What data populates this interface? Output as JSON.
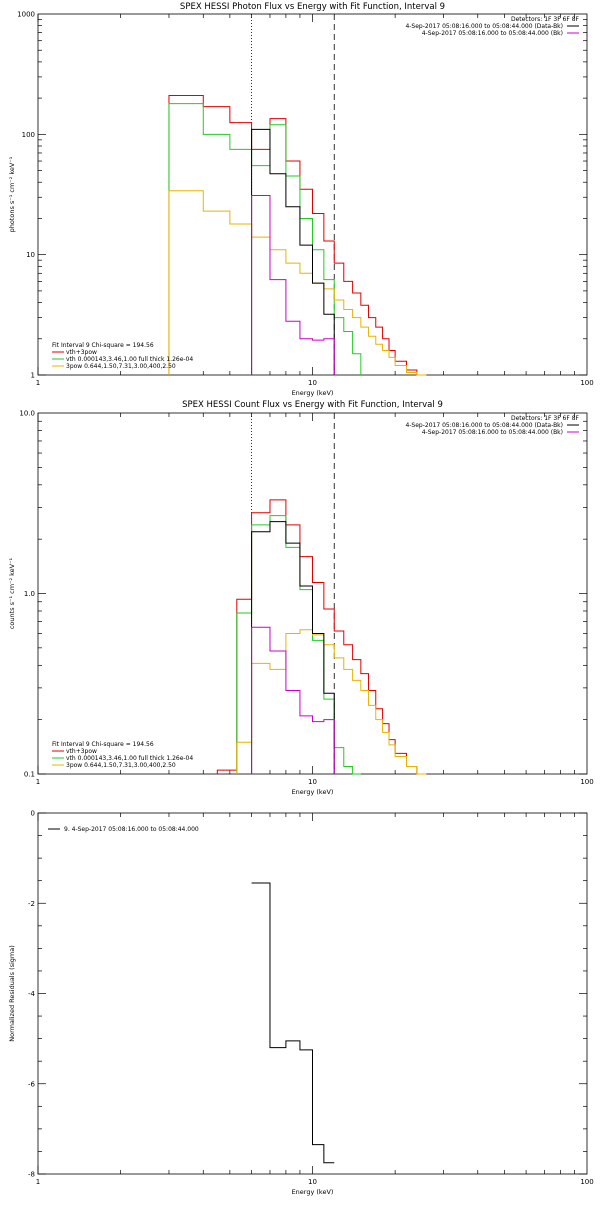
{
  "colors": {
    "red": "#e00000",
    "green": "#22cc22",
    "yellow": "#e8b400",
    "magenta": "#cc00cc",
    "black": "#000000"
  },
  "chart_data": [
    {
      "id": "photon",
      "type": "line",
      "title": "SPEX HESSI Photon Flux vs Energy with Fit Function, Interval 9",
      "xlabel": "Energy (keV)",
      "ylabel": "photons s⁻¹ cm⁻² keV⁻¹",
      "xscale": "log",
      "yscale": "log",
      "xlim": [
        1,
        100
      ],
      "ylim": [
        1,
        1000
      ],
      "xticks": [
        {
          "v": 1,
          "label": "1"
        },
        {
          "v": 10,
          "label": "10"
        },
        {
          "v": 100,
          "label": "100"
        }
      ],
      "yticks": [
        {
          "v": 1,
          "label": "1"
        },
        {
          "v": 10,
          "label": "10"
        },
        {
          "v": 100,
          "label": "100"
        },
        {
          "v": 1000,
          "label": "1000"
        }
      ],
      "vlines": [
        {
          "x": 6,
          "style": "dotted"
        },
        {
          "x": 12,
          "style": "dashed"
        }
      ],
      "header": [
        {
          "text": "Detectors: 1F 3F 6F 8F",
          "color": ""
        },
        {
          "text": "4-Sep-2017 05:08:16.000 to 05:08:44.000 (Data-Bk)",
          "color": "black"
        },
        {
          "text": "4-Sep-2017 05:08:16.000 to 05:08:44.000 (Bk)",
          "color": "magenta"
        }
      ],
      "legend_title": "Fit Interval 9   Chi-square = 194.56",
      "legend": [
        {
          "text": "vth+3pow",
          "color": "red"
        },
        {
          "text": "vth 0.000143,3.46,1.00  full thick 1.26e-04",
          "color": "green"
        },
        {
          "text": "3pow 0.644,1.50,7.31,3.00,400,2.50",
          "color": "yellow"
        }
      ],
      "series": [
        {
          "color": "red",
          "edges": [
            3,
            4,
            5,
            6,
            7,
            8,
            9,
            10,
            11,
            12,
            13,
            14,
            15,
            16,
            17,
            18,
            19,
            20,
            22,
            24,
            26
          ],
          "values": [
            210,
            170,
            125,
            75,
            135,
            60,
            35,
            22,
            13,
            8.5,
            6.0,
            4.8,
            3.8,
            3.0,
            2.5,
            2.0,
            1.6,
            1.3,
            1.1,
            0.95
          ]
        },
        {
          "color": "green",
          "edges": [
            3,
            4,
            5,
            6,
            7,
            8,
            9,
            10,
            11,
            12,
            13,
            14,
            15
          ],
          "values": [
            180,
            100,
            75,
            55,
            120,
            45,
            20,
            11,
            6.2,
            3.0,
            2.3,
            1.5
          ]
        },
        {
          "color": "yellow",
          "edges": [
            3,
            4,
            5,
            6,
            7,
            8,
            9,
            10,
            11,
            12,
            13,
            14,
            15,
            16,
            17,
            18,
            19,
            20,
            22,
            24,
            26
          ],
          "values": [
            34,
            23,
            18,
            14,
            11,
            8.5,
            7.0,
            5.8,
            5.2,
            4.2,
            3.5,
            3.0,
            2.5,
            2.1,
            1.8,
            1.6,
            1.4,
            1.2,
            1.05,
            0.9
          ]
        },
        {
          "color": "black",
          "edges": [
            6,
            7,
            8,
            9,
            10,
            11,
            12
          ],
          "values": [
            110,
            47,
            25,
            12,
            5.8,
            3.2
          ]
        },
        {
          "color": "magenta",
          "edges": [
            6,
            7,
            8,
            9,
            10,
            11,
            12
          ],
          "values": [
            31,
            6.2,
            2.8,
            2.0,
            1.95,
            2.0
          ]
        }
      ]
    },
    {
      "id": "count",
      "type": "line",
      "title": "SPEX HESSI Count Flux vs Energy with Fit Function, Interval 9",
      "xlabel": "Energy (keV)",
      "ylabel": "counts s⁻¹ cm⁻² keV⁻¹",
      "xscale": "log",
      "yscale": "log",
      "xlim": [
        1,
        100
      ],
      "ylim": [
        0.1,
        10
      ],
      "xticks": [
        {
          "v": 1,
          "label": "1"
        },
        {
          "v": 10,
          "label": "10"
        },
        {
          "v": 100,
          "label": "100"
        }
      ],
      "yticks": [
        {
          "v": 0.1,
          "label": "0.1"
        },
        {
          "v": 1,
          "label": "1.0"
        },
        {
          "v": 10,
          "label": "10.0"
        }
      ],
      "vlines": [
        {
          "x": 6,
          "style": "dotted"
        },
        {
          "x": 12,
          "style": "dashed"
        }
      ],
      "header": [
        {
          "text": "Detectors: 1F 3F 6F 8F",
          "color": ""
        },
        {
          "text": "4-Sep-2017 05:08:16.000 to 05:08:44.000 (Data-Bk)",
          "color": "black"
        },
        {
          "text": "4-Sep-2017 05:08:16.000 to 05:08:44.000 (Bk)",
          "color": "magenta"
        }
      ],
      "legend_title": "Fit Interval 9   Chi-square = 194.56",
      "legend": [
        {
          "text": "vth+3pow",
          "color": "red"
        },
        {
          "text": "vth 0.000143,3.46,1.00  full thick 1.26e-04",
          "color": "green"
        },
        {
          "text": "3pow 0.644,1.50,7.31,3.00,400,2.50",
          "color": "yellow"
        }
      ],
      "series": [
        {
          "color": "red",
          "edges": [
            4.5,
            5.3,
            6,
            7,
            8,
            9,
            10,
            11,
            12,
            13,
            14,
            15,
            16,
            17,
            18,
            19,
            20,
            22,
            24,
            26
          ],
          "values": [
            0.105,
            0.93,
            2.8,
            3.3,
            2.4,
            1.6,
            1.15,
            0.82,
            0.62,
            0.52,
            0.43,
            0.36,
            0.29,
            0.23,
            0.19,
            0.155,
            0.13,
            0.11,
            0.1
          ]
        },
        {
          "color": "green",
          "edges": [
            5.3,
            6,
            7,
            8,
            9,
            10,
            11,
            12,
            13,
            14,
            15
          ],
          "values": [
            0.78,
            2.4,
            2.7,
            1.8,
            1.05,
            0.55,
            0.26,
            0.14,
            0.11,
            0.1
          ]
        },
        {
          "color": "yellow",
          "edges": [
            5.3,
            6,
            7,
            8,
            9,
            10,
            11,
            12,
            13,
            14,
            15,
            16,
            17,
            18,
            19,
            20,
            22,
            24,
            26
          ],
          "values": [
            0.15,
            0.41,
            0.38,
            0.6,
            0.63,
            0.59,
            0.52,
            0.44,
            0.38,
            0.33,
            0.29,
            0.24,
            0.2,
            0.17,
            0.145,
            0.125,
            0.11,
            0.1
          ]
        },
        {
          "color": "black",
          "edges": [
            6,
            7,
            8,
            9,
            10,
            11,
            12
          ],
          "values": [
            2.2,
            2.5,
            1.9,
            1.1,
            0.6,
            0.28
          ]
        },
        {
          "color": "magenta",
          "edges": [
            6,
            7,
            8,
            9,
            10,
            11,
            12
          ],
          "values": [
            0.65,
            0.48,
            0.29,
            0.21,
            0.195,
            0.2
          ]
        }
      ]
    },
    {
      "id": "residuals",
      "type": "line",
      "title": "",
      "xlabel": "Energy (keV)",
      "ylabel": "Normalized Residuals (sigma)",
      "xscale": "log",
      "yscale": "linear",
      "xlim": [
        1,
        100
      ],
      "ylim": [
        -8,
        0
      ],
      "xticks": [
        {
          "v": 1,
          "label": "1"
        },
        {
          "v": 10,
          "label": "10"
        },
        {
          "v": 100,
          "label": "100"
        }
      ],
      "yticks": [
        {
          "v": 0,
          "label": "0"
        },
        {
          "v": -2,
          "label": "-2"
        },
        {
          "v": -4,
          "label": "-4"
        },
        {
          "v": -6,
          "label": "-6"
        },
        {
          "v": -8,
          "label": "-8"
        }
      ],
      "vlines": [],
      "header": [],
      "legend_title": "",
      "legend": [
        {
          "text": "9.  4-Sep-2017 05:08:16.000 to 05:08:44.000",
          "color": "black"
        }
      ],
      "series": [
        {
          "color": "black",
          "edges": [
            6,
            7,
            8,
            9,
            10,
            11,
            12
          ],
          "values": [
            -1.55,
            -5.2,
            -5.05,
            -5.25,
            -7.35,
            -7.75
          ]
        }
      ]
    }
  ]
}
